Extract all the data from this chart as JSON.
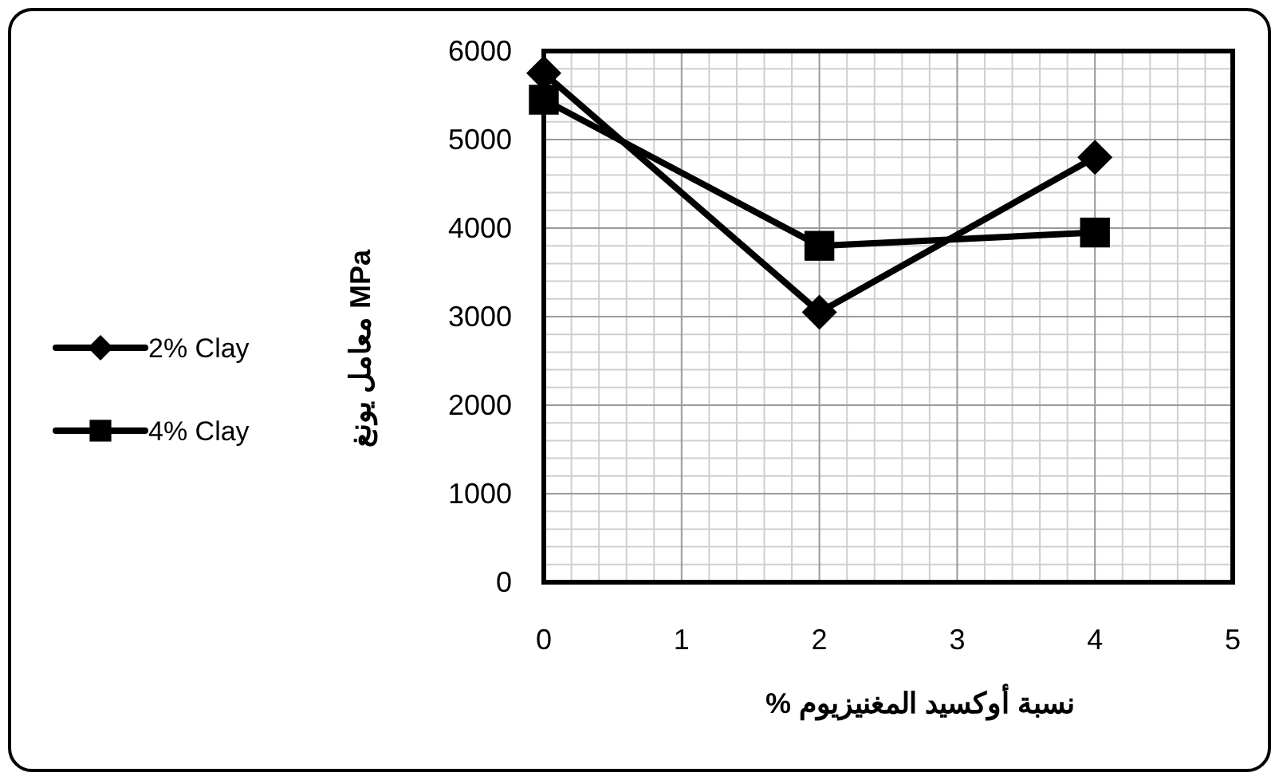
{
  "chart_data": {
    "type": "line",
    "xlabel": "نسبة أوكسيد المغنيزيوم %",
    "ylabel": "معامل يونغ MPa",
    "x": [
      0,
      2,
      4
    ],
    "series": [
      {
        "name": "2% Clay",
        "color": "#000000",
        "marker": "diamond",
        "values": [
          5750,
          3050,
          4800
        ]
      },
      {
        "name": "4% Clay",
        "color": "#000000",
        "marker": "square",
        "values": [
          5450,
          3800,
          3950
        ]
      }
    ],
    "xlim": [
      0,
      5
    ],
    "xticks": [
      0,
      1,
      2,
      3,
      4,
      5
    ],
    "ylim": [
      0,
      6000
    ],
    "yticks": [
      0,
      1000,
      2000,
      3000,
      4000,
      5000,
      6000
    ],
    "grid": true,
    "legend": "left",
    "line_style": "solid"
  }
}
